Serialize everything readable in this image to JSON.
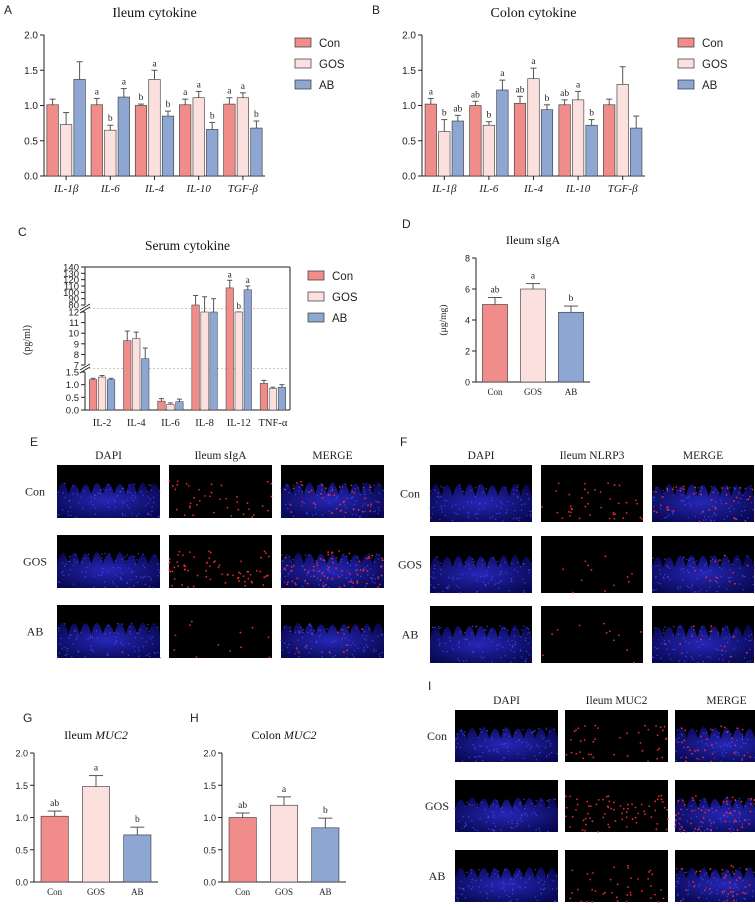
{
  "colors": {
    "Con": "#f08c89",
    "GOS": "#fbe0de",
    "AB": "#8ea6d2",
    "bar_outline": "#333333",
    "dapi": "#1a1aa8",
    "red_stain": "#ff3030"
  },
  "legend": {
    "Con": "Con",
    "GOS": "GOS",
    "AB": "AB"
  },
  "chart_data": [
    {
      "panel": "A",
      "type": "bar",
      "title": "Ileum cytokine",
      "categories": [
        "IL-1β",
        "IL-6",
        "IL-4",
        "IL-10",
        "TGF-β"
      ],
      "ylim": [
        0,
        2.0
      ],
      "yticks": [
        "0.0",
        "0.5",
        "1.0",
        "1.5",
        "2.0"
      ],
      "series": [
        {
          "name": "Con",
          "values": [
            1.01,
            1.01,
            1.0,
            1.01,
            1.02
          ],
          "errors": [
            0.08,
            0.09,
            0.02,
            0.08,
            0.09
          ],
          "letters": [
            "",
            "a",
            "b",
            "a",
            "a"
          ]
        },
        {
          "name": "GOS",
          "values": [
            0.73,
            0.65,
            1.37,
            1.11,
            1.11
          ],
          "errors": [
            0.17,
            0.07,
            0.13,
            0.09,
            0.07
          ],
          "letters": [
            "",
            "b",
            "a",
            "a",
            "a"
          ]
        },
        {
          "name": "AB",
          "values": [
            1.37,
            1.12,
            0.85,
            0.66,
            0.68
          ],
          "errors": [
            0.25,
            0.12,
            0.07,
            0.1,
            0.1
          ],
          "letters": [
            "",
            "a",
            "b",
            "b",
            "b"
          ]
        }
      ]
    },
    {
      "panel": "B",
      "type": "bar",
      "title": "Colon cytokine",
      "categories": [
        "IL-1β",
        "IL-6",
        "IL-4",
        "IL-10",
        "TGF-β"
      ],
      "ylim": [
        0,
        2.0
      ],
      "yticks": [
        "0.0",
        "0.5",
        "1.0",
        "1.5",
        "2.0"
      ],
      "series": [
        {
          "name": "Con",
          "values": [
            1.02,
            1.0,
            1.03,
            1.01,
            1.01
          ],
          "errors": [
            0.08,
            0.06,
            0.1,
            0.07,
            0.08
          ],
          "letters": [
            "a",
            "ab",
            "ab",
            "ab",
            ""
          ]
        },
        {
          "name": "GOS",
          "values": [
            0.63,
            0.72,
            1.38,
            1.08,
            1.3
          ],
          "errors": [
            0.17,
            0.05,
            0.15,
            0.12,
            0.25
          ],
          "letters": [
            "b",
            "b",
            "a",
            "a",
            ""
          ]
        },
        {
          "name": "AB",
          "values": [
            0.78,
            1.22,
            0.94,
            0.72,
            0.68
          ],
          "errors": [
            0.08,
            0.14,
            0.07,
            0.08,
            0.17
          ],
          "letters": [
            "ab",
            "a",
            "b",
            "b",
            ""
          ]
        }
      ]
    },
    {
      "panel": "C",
      "type": "bar",
      "title": "Serum cytokine",
      "ylabel": "(pg/ml)",
      "categories": [
        "IL-2",
        "IL-4",
        "IL-6",
        "IL-8",
        "IL-12",
        "TNF-α"
      ],
      "broken_axis_segments": [
        {
          "range": [
            0,
            1.5
          ],
          "ticks": [
            "0.0",
            "0.5",
            "1.0",
            "1.5"
          ]
        },
        {
          "range": [
            7,
            12
          ],
          "ticks": [
            "7",
            "8",
            "9",
            "10",
            "11",
            "12"
          ]
        },
        {
          "range": [
            80,
            140
          ],
          "ticks": [
            "80",
            "90",
            "100",
            "110",
            "120",
            "130",
            "140"
          ]
        }
      ],
      "series": [
        {
          "name": "Con",
          "values": [
            1.2,
            9.3,
            0.35,
            80,
            107,
            1.05
          ],
          "errors": [
            0.05,
            0.9,
            0.1,
            15,
            12,
            0.12
          ],
          "letters": [
            "",
            "",
            "",
            "",
            "a",
            ""
          ]
        },
        {
          "name": "GOS",
          "values": [
            1.3,
            9.5,
            0.22,
            77,
            74,
            0.85
          ],
          "errors": [
            0.06,
            0.6,
            0.06,
            16,
            4,
            0.05
          ],
          "letters": [
            "",
            "",
            "",
            "",
            "b",
            ""
          ]
        },
        {
          "name": "AB",
          "values": [
            1.2,
            7.6,
            0.33,
            78,
            104,
            0.9
          ],
          "errors": [
            0.05,
            1.0,
            0.1,
            12,
            6,
            0.1
          ],
          "letters": [
            "",
            "",
            "",
            "",
            "a",
            ""
          ]
        }
      ]
    },
    {
      "panel": "D",
      "type": "bar",
      "title": "Ileum sIgA",
      "ylabel": "(μg/mg)",
      "categories": [
        "Con",
        "GOS",
        "AB"
      ],
      "ylim": [
        0,
        8
      ],
      "yticks": [
        "0",
        "2",
        "4",
        "6",
        "8"
      ],
      "values": [
        5.0,
        6.0,
        4.5
      ],
      "errors": [
        0.45,
        0.35,
        0.4
      ],
      "letters": [
        "ab",
        "a",
        "b"
      ]
    },
    {
      "panel": "G",
      "type": "bar",
      "title": "Ileum",
      "title_gene": "MUC2",
      "categories": [
        "Con",
        "GOS",
        "AB"
      ],
      "ylim": [
        0,
        2.0
      ],
      "yticks": [
        "0.0",
        "0.5",
        "1.0",
        "1.5",
        "2.0"
      ],
      "values": [
        1.02,
        1.48,
        0.73
      ],
      "errors": [
        0.08,
        0.17,
        0.12
      ],
      "letters": [
        "ab",
        "a",
        "b"
      ]
    },
    {
      "panel": "H",
      "type": "bar",
      "title": "Colon",
      "title_gene": "MUC2",
      "categories": [
        "Con",
        "GOS",
        "AB"
      ],
      "ylim": [
        0,
        2.0
      ],
      "yticks": [
        "0.0",
        "0.5",
        "1.0",
        "1.5",
        "2.0"
      ],
      "values": [
        1.0,
        1.19,
        0.84
      ],
      "errors": [
        0.07,
        0.13,
        0.15
      ],
      "letters": [
        "ab",
        "a",
        "b"
      ]
    }
  ],
  "image_panels": [
    {
      "panel": "E",
      "columns": [
        "DAPI",
        "Ileum sIgA",
        "MERGE"
      ],
      "rows": [
        "Con",
        "GOS",
        "AB"
      ]
    },
    {
      "panel": "F",
      "columns": [
        "DAPI",
        "Ileum NLRP3",
        "MERGE"
      ],
      "rows": [
        "Con",
        "GOS",
        "AB"
      ]
    },
    {
      "panel": "I",
      "columns": [
        "DAPI",
        "Ileum MUC2",
        "MERGE"
      ],
      "rows": [
        "Con",
        "GOS",
        "AB"
      ]
    }
  ]
}
